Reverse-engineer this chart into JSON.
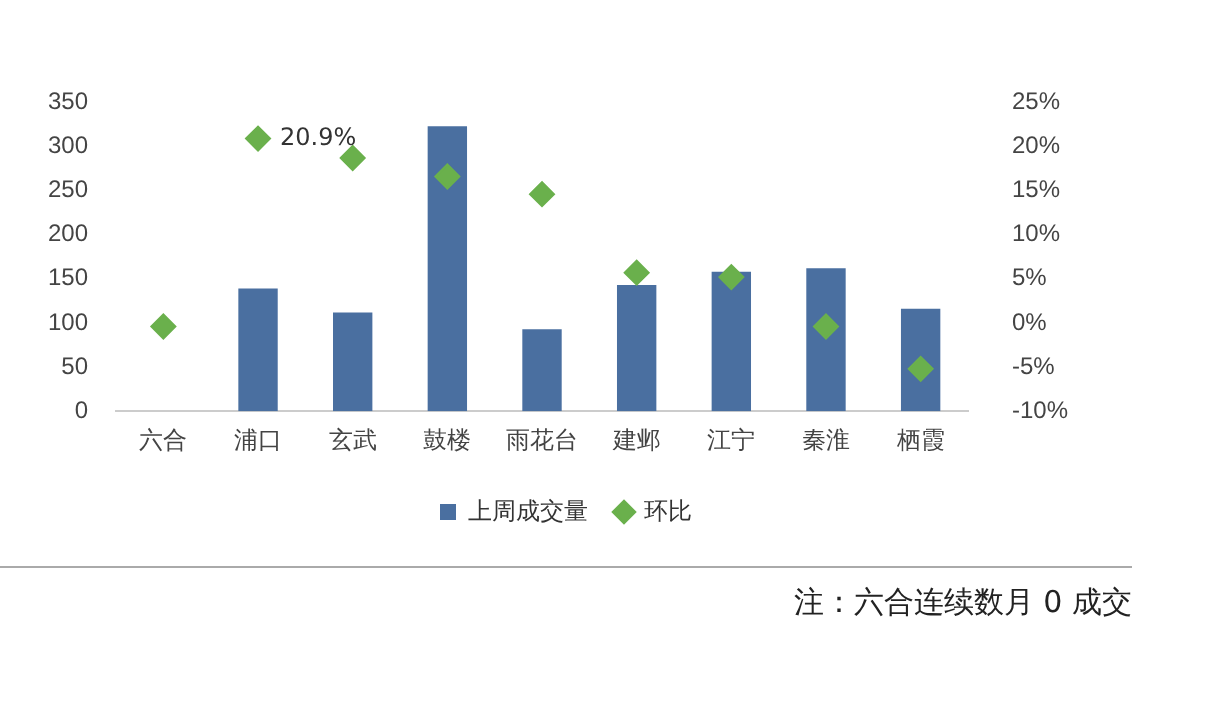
{
  "chart_data": {
    "type": "bar",
    "categories": [
      "六合",
      "浦口",
      "玄武",
      "鼓楼",
      "雨花台",
      "建邺",
      "江宁",
      "秦淮",
      "栖霞"
    ],
    "series": [
      {
        "name": "上周成交量",
        "color": "#4a6fa0",
        "values": [
          0,
          139,
          112,
          323,
          93,
          143,
          158,
          162,
          116
        ]
      },
      {
        "name": "环比",
        "type": "scatter",
        "axis": "y2",
        "color": "#6ab04c",
        "marker": "diamond",
        "x": [
          "六合",
          "浦口",
          "玄武",
          "鼓楼",
          "雨花台",
          "建邺",
          "江宁",
          "秦淮",
          "栖霞"
        ],
        "values": [
          -0.4,
          20.9,
          18.7,
          16.6,
          14.6,
          5.7,
          5.2,
          -0.4,
          -5.2
        ],
        "value_labels": [
          null,
          "20.9%",
          null,
          null,
          null,
          null,
          null,
          null,
          null
        ]
      }
    ],
    "ylim": [
      0,
      350
    ],
    "yticks": [
      0,
      50,
      100,
      150,
      200,
      250,
      300,
      350
    ],
    "y2lim": [
      -10,
      25
    ],
    "y2ticks": [
      {
        "value": -10,
        "label": "-10%"
      },
      {
        "value": -5,
        "label": "-5%"
      },
      {
        "value": 0,
        "label": "0%"
      },
      {
        "value": 5,
        "label": "5%"
      },
      {
        "value": 10,
        "label": "10%"
      },
      {
        "value": 15,
        "label": "15%"
      },
      {
        "value": 20,
        "label": "20%"
      },
      {
        "value": 25,
        "label": "25%"
      }
    ],
    "grid": false,
    "legend": "bottom",
    "annotations": [
      "注：六合连续数月 0 成交"
    ]
  }
}
